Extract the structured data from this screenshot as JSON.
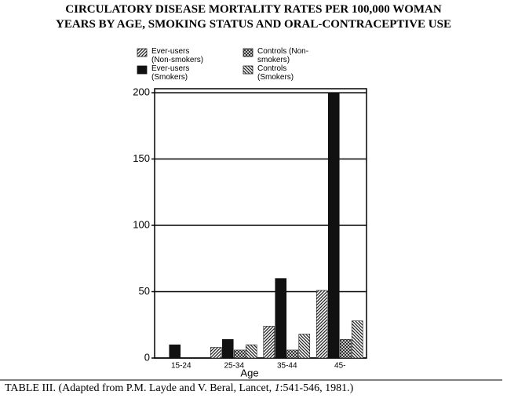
{
  "chart_data": {
    "type": "bar",
    "title_line1": "CIRCULATORY DISEASE MORTALITY RATES PER 100,000 WOMAN",
    "title_line2": "YEARS BY AGE, SMOKING STATUS AND ORAL-CONTRACEPTIVE USE",
    "xlabel": "Age",
    "categories": [
      "15-24",
      "25-34",
      "35-44",
      "45-"
    ],
    "series": [
      {
        "name": "Ever-users (Non-smokers)",
        "color": "#222222",
        "pattern": "diagonal",
        "values": [
          0,
          8,
          24,
          51
        ]
      },
      {
        "name": "Ever-users (Smokers)",
        "color": "#111111",
        "pattern": "solid",
        "values": [
          10,
          14,
          60,
          200
        ]
      },
      {
        "name": "Controls (Non-smokers)",
        "color": "#222222",
        "pattern": "crosshatch",
        "values": [
          0,
          6,
          6,
          14
        ]
      },
      {
        "name": "Controls (Smokers)",
        "color": "#222222",
        "pattern": "diagonal-reverse",
        "values": [
          0,
          10,
          18,
          28
        ]
      }
    ],
    "ylim": [
      0,
      203
    ],
    "yticks": [
      0,
      50,
      100,
      150,
      200
    ],
    "grid": true,
    "caption_start": "TABLE III. (Adapted from P.M. Layde and V. Beral, Lancet, ",
    "caption_volume": "1",
    "caption_end": ":541-546, 1981.)"
  }
}
